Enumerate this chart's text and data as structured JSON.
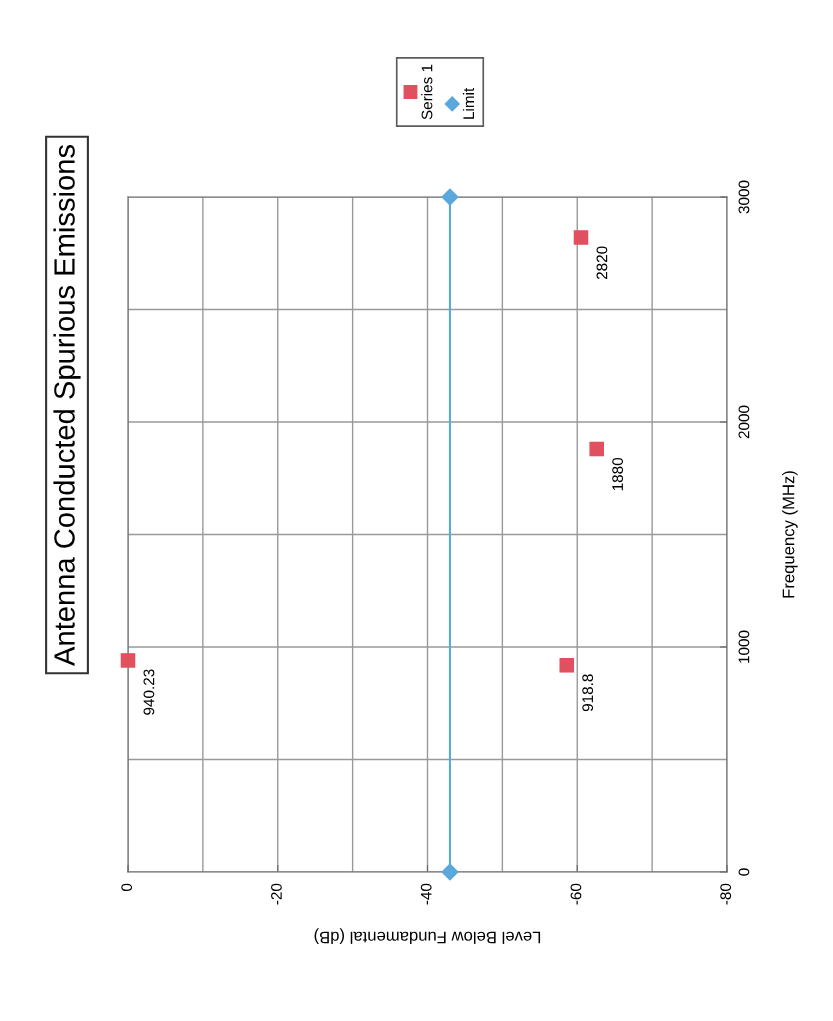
{
  "chart_data": {
    "type": "scatter",
    "title": "Antenna Conducted Spurious Emissions",
    "xlabel": "Level Below Fundamental (dB)",
    "ylabel": "Frequency (MHz)",
    "series": [
      {
        "name": "Series 1",
        "marker": "square",
        "color": "#e0505f",
        "x": [
          0,
          -58.6,
          -62.6,
          -60.5
        ],
        "values": [
          940.23,
          918.8,
          1880,
          2820
        ]
      },
      {
        "name": "Limit",
        "type": "line",
        "marker": "diamond",
        "line_style": "solid",
        "color": "#5aa8dc",
        "x": [
          -43,
          -43
        ],
        "values": [
          0,
          3000
        ]
      }
    ],
    "xlim": [
      0,
      -80
    ],
    "xticks": [
      0,
      {
        "value": -10,
        "label": null
      },
      -20,
      {
        "value": -30,
        "label": null
      },
      -40,
      {
        "value": -50,
        "label": null
      },
      -60,
      {
        "value": -70,
        "label": null
      },
      -80
    ],
    "ylim": [
      0,
      3000
    ],
    "yticks": [
      0,
      {
        "value": 500,
        "label": null
      },
      1000,
      {
        "value": 1500,
        "label": null
      },
      2000,
      {
        "value": 2500,
        "label": null
      },
      3000
    ],
    "annotations": [
      {
        "text": "940.23",
        "x": 0,
        "y": 940.23
      },
      {
        "text": "918.8",
        "x": -58.6,
        "y": 918.8
      },
      {
        "text": "1880",
        "x": -62.6,
        "y": 1880
      },
      {
        "text": "2820",
        "x": -60.5,
        "y": 2820
      }
    ],
    "grid": true,
    "legend": "top right"
  }
}
